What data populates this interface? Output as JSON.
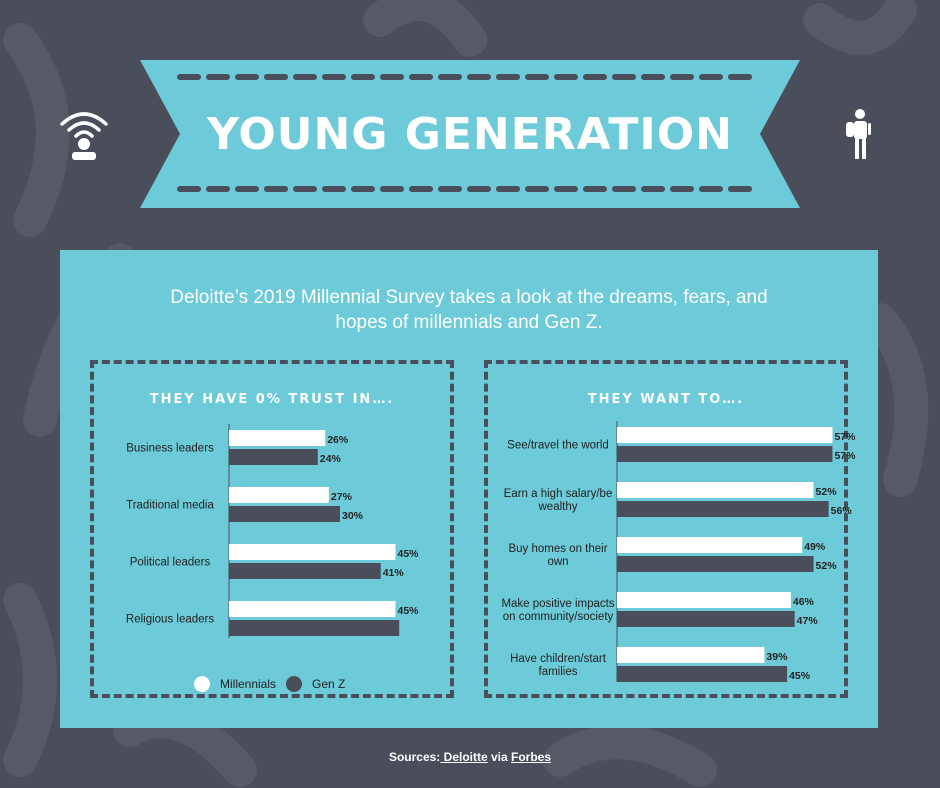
{
  "title": "YOUNG GENERATION",
  "intro": "Deloitte’s 2019 Millennial Survey takes a look at the dreams, fears, and hopes of millennials and Gen Z.",
  "colors": {
    "background": "#4a4d5a",
    "banner": "#6dcad8",
    "panel": "#6dcad8",
    "millennials": "#ffffff",
    "genz": "#4a4d5a"
  },
  "icons": {
    "left": "wifi-person-icon",
    "right": "backpacker-icon"
  },
  "legend": {
    "millennials": "Millennials",
    "genz": "Gen Z"
  },
  "sources": {
    "prefix": "Sources:",
    "link1": " Deloitte",
    "via": " via ",
    "link2": "Forbes"
  },
  "chart_data": [
    {
      "type": "bar",
      "orientation": "horizontal",
      "title": "THEY HAVE 0% TRUST IN….",
      "categories": [
        "Business leaders",
        "Traditional media",
        "Political leaders",
        "Religious leaders"
      ],
      "series": [
        {
          "name": "Millennials",
          "values": [
            26,
            27,
            45,
            45
          ],
          "labels": [
            "26%",
            "27%",
            "45%",
            "45%"
          ]
        },
        {
          "name": "Gen Z",
          "values": [
            24,
            30,
            41,
            46
          ],
          "labels": [
            "24%",
            "30%",
            "41%",
            ""
          ]
        }
      ],
      "legend": "bottom"
    },
    {
      "type": "bar",
      "orientation": "horizontal",
      "title": "THEY WANT TO….",
      "categories": [
        "See/travel the world",
        "Earn a high salary/be wealthy",
        "Buy homes on their own",
        "Make positive impacts on community/society",
        "Have children/start families"
      ],
      "category_lines": [
        [
          "See/travel the world"
        ],
        [
          "Earn a high salary/be",
          "wealthy"
        ],
        [
          "Buy homes on their",
          "own"
        ],
        [
          "Make positive impacts",
          "on community/society"
        ],
        [
          "Have children/start",
          "families"
        ]
      ],
      "series": [
        {
          "name": "Millennials",
          "values": [
            57,
            52,
            49,
            46,
            39
          ],
          "labels": [
            "57%",
            "52%",
            "49%",
            "46%",
            "39%"
          ]
        },
        {
          "name": "Gen Z",
          "values": [
            57,
            56,
            52,
            47,
            45
          ],
          "labels": [
            "57%",
            "56%",
            "52%",
            "47%",
            "45%"
          ]
        }
      ]
    }
  ]
}
